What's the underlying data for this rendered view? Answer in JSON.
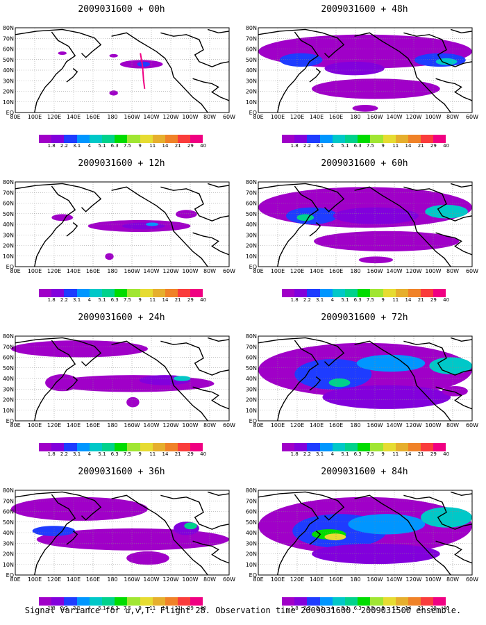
{
  "panels": [
    {
      "title": "2009031600  +  00h",
      "lead": 0
    },
    {
      "title": "2009031600  +  48h",
      "lead": 48
    },
    {
      "title": "2009031600  +  12h",
      "lead": 12
    },
    {
      "title": "2009031600  +  60h",
      "lead": 60
    },
    {
      "title": "2009031600  +  24h",
      "lead": 24
    },
    {
      "title": "2009031600  +  72h",
      "lead": 72
    },
    {
      "title": "2009031600  +  36h",
      "lead": 36
    },
    {
      "title": "2009031600  +  84h",
      "lead": 84
    }
  ],
  "axes": {
    "x_ticks": [
      "80E",
      "100E",
      "120E",
      "140E",
      "160E",
      "180",
      "160W",
      "140W",
      "120W",
      "100W",
      "80W",
      "60W"
    ],
    "y_ticks": [
      "EQ",
      "10N",
      "20N",
      "30N",
      "40N",
      "50N",
      "60N",
      "70N",
      "80N"
    ]
  },
  "legend": {
    "labels": [
      "1.8",
      "2.2",
      "3.1",
      "4",
      "5.1",
      "6.3",
      "7.5",
      "9",
      "11",
      "14",
      "21",
      "29",
      "40"
    ],
    "colors": [
      "#a000c8",
      "#8200dc",
      "#1e3cff",
      "#0096ff",
      "#00c8c8",
      "#00d28c",
      "#00dc00",
      "#a0e632",
      "#e6dc32",
      "#e6af2d",
      "#f08228",
      "#fa3c3c",
      "#f00082"
    ]
  },
  "caption": "Signal Variance for u,v,T. Flight 28. Observation time 2009031600. 2009031500 ensemble."
}
